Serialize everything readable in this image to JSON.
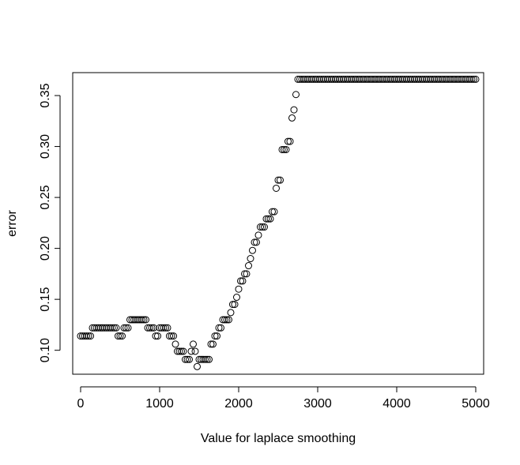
{
  "chart_data": {
    "type": "scatter",
    "title": "",
    "xlabel": "Value for laplace smoothing",
    "ylabel": "error",
    "xlim": [
      -100,
      5100
    ],
    "ylim": [
      0.0765,
      0.3725
    ],
    "x_ticks": [
      0,
      1000,
      2000,
      3000,
      4000,
      5000
    ],
    "x_tick_labels": [
      "0",
      "1000",
      "2000",
      "3000",
      "4000",
      "5000"
    ],
    "y_ticks": [
      0.1,
      0.15,
      0.2,
      0.25,
      0.3,
      0.35
    ],
    "y_tick_labels": [
      "0.10",
      "0.15",
      "0.20",
      "0.25",
      "0.30",
      "0.35"
    ],
    "grid": false,
    "legend": "none",
    "marker": "open-circle",
    "color": "#000000",
    "series": [
      {
        "points": [
          [
            0,
            0.114
          ],
          [
            25,
            0.114
          ],
          [
            50,
            0.114
          ],
          [
            75,
            0.114
          ],
          [
            100,
            0.114
          ],
          [
            125,
            0.114
          ],
          [
            150,
            0.122
          ],
          [
            175,
            0.122
          ],
          [
            200,
            0.122
          ],
          [
            225,
            0.122
          ],
          [
            250,
            0.122
          ],
          [
            275,
            0.122
          ],
          [
            300,
            0.122
          ],
          [
            325,
            0.122
          ],
          [
            350,
            0.122
          ],
          [
            375,
            0.122
          ],
          [
            400,
            0.122
          ],
          [
            425,
            0.122
          ],
          [
            450,
            0.122
          ],
          [
            475,
            0.114
          ],
          [
            500,
            0.114
          ],
          [
            525,
            0.114
          ],
          [
            550,
            0.122
          ],
          [
            575,
            0.122
          ],
          [
            600,
            0.122
          ],
          [
            625,
            0.13
          ],
          [
            650,
            0.13
          ],
          [
            675,
            0.13
          ],
          [
            700,
            0.13
          ],
          [
            725,
            0.13
          ],
          [
            750,
            0.13
          ],
          [
            775,
            0.13
          ],
          [
            800,
            0.13
          ],
          [
            825,
            0.13
          ],
          [
            850,
            0.122
          ],
          [
            875,
            0.122
          ],
          [
            900,
            0.122
          ],
          [
            925,
            0.122
          ],
          [
            950,
            0.114
          ],
          [
            975,
            0.114
          ],
          [
            1000,
            0.122
          ],
          [
            1025,
            0.122
          ],
          [
            1050,
            0.122
          ],
          [
            1075,
            0.122
          ],
          [
            1100,
            0.122
          ],
          [
            1125,
            0.114
          ],
          [
            1150,
            0.114
          ],
          [
            1175,
            0.114
          ],
          [
            1200,
            0.106
          ],
          [
            1225,
            0.099
          ],
          [
            1250,
            0.099
          ],
          [
            1275,
            0.099
          ],
          [
            1300,
            0.099
          ],
          [
            1325,
            0.091
          ],
          [
            1350,
            0.091
          ],
          [
            1375,
            0.091
          ],
          [
            1400,
            0.099
          ],
          [
            1425,
            0.106
          ],
          [
            1450,
            0.099
          ],
          [
            1475,
            0.084
          ],
          [
            1500,
            0.091
          ],
          [
            1525,
            0.091
          ],
          [
            1550,
            0.091
          ],
          [
            1575,
            0.091
          ],
          [
            1600,
            0.091
          ],
          [
            1625,
            0.091
          ],
          [
            1650,
            0.106
          ],
          [
            1675,
            0.106
          ],
          [
            1700,
            0.114
          ],
          [
            1725,
            0.114
          ],
          [
            1750,
            0.122
          ],
          [
            1775,
            0.122
          ],
          [
            1800,
            0.13
          ],
          [
            1825,
            0.13
          ],
          [
            1850,
            0.13
          ],
          [
            1875,
            0.13
          ],
          [
            1900,
            0.137
          ],
          [
            1925,
            0.145
          ],
          [
            1950,
            0.145
          ],
          [
            1975,
            0.152
          ],
          [
            2000,
            0.16
          ],
          [
            2025,
            0.168
          ],
          [
            2050,
            0.168
          ],
          [
            2075,
            0.175
          ],
          [
            2100,
            0.175
          ],
          [
            2125,
            0.183
          ],
          [
            2150,
            0.19
          ],
          [
            2175,
            0.198
          ],
          [
            2200,
            0.206
          ],
          [
            2225,
            0.206
          ],
          [
            2250,
            0.213
          ],
          [
            2275,
            0.221
          ],
          [
            2300,
            0.221
          ],
          [
            2325,
            0.221
          ],
          [
            2350,
            0.229
          ],
          [
            2375,
            0.229
          ],
          [
            2400,
            0.229
          ],
          [
            2425,
            0.236
          ],
          [
            2450,
            0.236
          ],
          [
            2475,
            0.259
          ],
          [
            2500,
            0.267
          ],
          [
            2525,
            0.267
          ],
          [
            2550,
            0.297
          ],
          [
            2575,
            0.297
          ],
          [
            2600,
            0.297
          ],
          [
            2625,
            0.305
          ],
          [
            2650,
            0.305
          ],
          [
            2675,
            0.328
          ],
          [
            2700,
            0.336
          ],
          [
            2725,
            0.351
          ],
          [
            2750,
            0.366
          ]
        ],
        "plateau": {
          "x_start": 2775,
          "x_end": 5000,
          "x_step": 25,
          "y": 0.366
        }
      }
    ]
  }
}
